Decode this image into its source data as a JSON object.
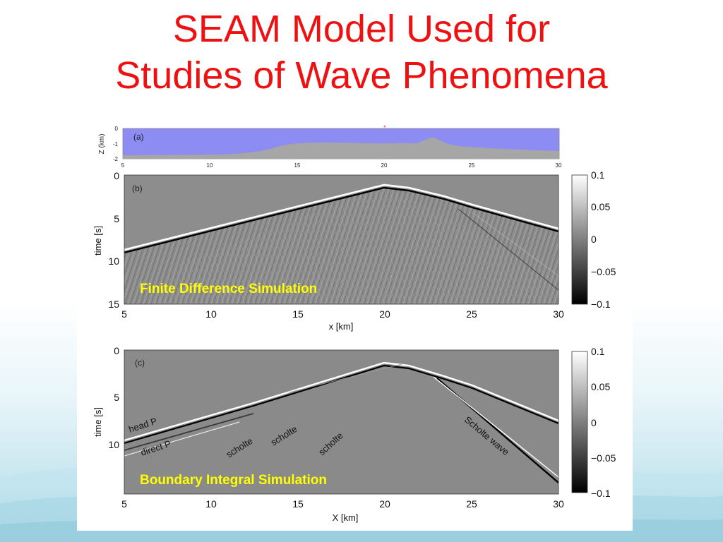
{
  "slide": {
    "title_line1": "SEAM Model Used for",
    "title_line2": "Studies of Wave Phenomena",
    "title_color": "#ee1111"
  },
  "panel_a": {
    "tag": "(a)",
    "ylabel": "Z (km)",
    "yticks": [
      "0",
      "-1",
      "-2"
    ],
    "xticks": [
      "5",
      "10",
      "15",
      "20",
      "25",
      "30"
    ],
    "water_color": "#8c8cf2",
    "seabed_color": "#a6a6a6"
  },
  "panel_b": {
    "tag": "(b)",
    "ylabel": "time [s]",
    "xlabel": "x [km]",
    "yticks": [
      "0",
      "5",
      "10",
      "15"
    ],
    "xticks": [
      "5",
      "10",
      "15",
      "20",
      "25",
      "30"
    ],
    "sim_label": "Finite Difference Simulation",
    "colorbar_ticks": [
      "0.1",
      "0.05",
      "0",
      "−0.05",
      "−0.1"
    ]
  },
  "panel_c": {
    "tag": "(c)",
    "ylabel": "time [s]",
    "xlabel": "X [km]",
    "yticks": [
      "0",
      "5",
      "10"
    ],
    "xticks": [
      "5",
      "10",
      "15",
      "20",
      "25",
      "30"
    ],
    "sim_label": "Boundary Integral Simulation",
    "colorbar_ticks": [
      "0.1",
      "0.05",
      "0",
      "−0.05",
      "−0.1"
    ],
    "annotations": {
      "head_p": "head P",
      "direct_p": "direct P",
      "scholte_1": "scholte",
      "scholte_2": "scholte",
      "scholte_3": "scholte",
      "scholte_wave": "Scholte wave"
    }
  },
  "sim_label_color": "#ffff00"
}
